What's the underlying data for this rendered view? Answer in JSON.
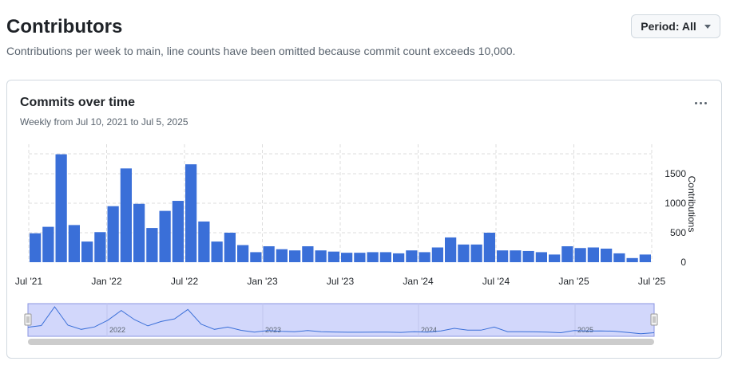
{
  "header": {
    "title": "Contributors",
    "subtitle": "Contributions per week to main, line counts have been omitted because commit count exceeds 10,000.",
    "period_label": "Period: All"
  },
  "card": {
    "title": "Commits over time",
    "subtitle": "Weekly from Jul 10, 2021 to Jul 5, 2025"
  },
  "colors": {
    "bar": "#3a6fd8",
    "navigator_fill": "#d2d7fb",
    "navigator_line": "#3a6fd8",
    "scrollbar": "#cccccc"
  },
  "chart_data": {
    "type": "bar",
    "title": "Commits over time",
    "ylabel": "Contributions",
    "ylim": [
      0,
      2000
    ],
    "yticks": [
      0,
      500,
      1000,
      1500
    ],
    "x_tick_labels": [
      "Jul '21",
      "Jan '22",
      "Jul '22",
      "Jan '23",
      "Jul '23",
      "Jan '24",
      "Jul '24",
      "Jan '25",
      "Jul '25"
    ],
    "navigator_labels": [
      "2022",
      "2023",
      "2024",
      "2025"
    ],
    "values": [
      490,
      600,
      1830,
      630,
      350,
      510,
      950,
      1590,
      990,
      580,
      870,
      1040,
      1660,
      690,
      350,
      500,
      290,
      170,
      270,
      220,
      200,
      270,
      200,
      180,
      160,
      160,
      170,
      170,
      150,
      200,
      170,
      250,
      420,
      300,
      300,
      500,
      200,
      200,
      190,
      170,
      130,
      270,
      240,
      250,
      230,
      150,
      70,
      130
    ]
  }
}
